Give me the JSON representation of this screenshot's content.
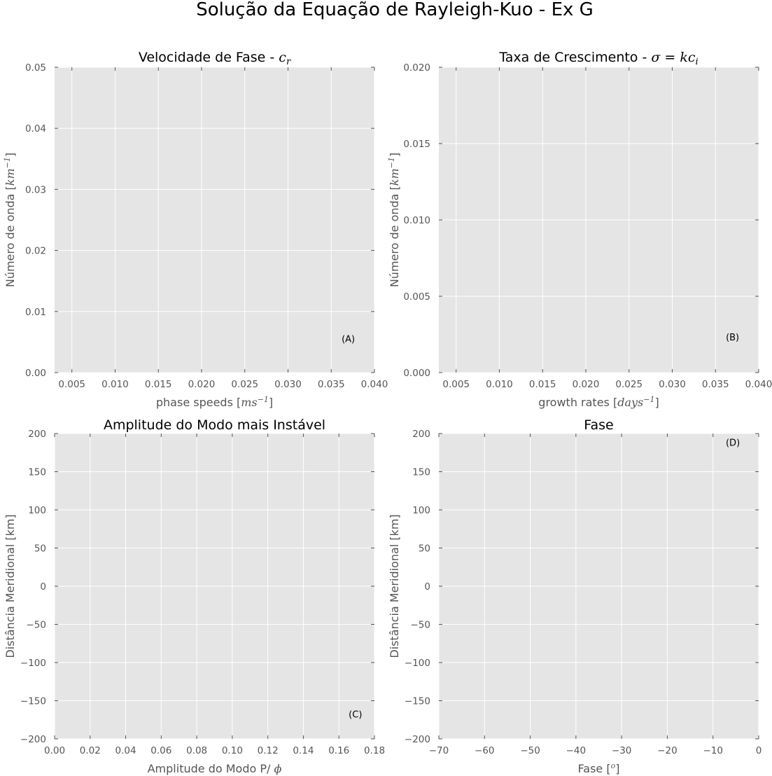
{
  "figure": {
    "suptitle": "Solução da Equação de Rayleigh-Kuo - Ex G",
    "background": "#ffffff",
    "axes_facecolor": "#e5e5e5",
    "grid_color": "#ffffff",
    "tick_color": "#555555"
  },
  "chart_data": [
    {
      "id": "A",
      "type": "line",
      "title": "Velocidade de Fase - ",
      "title_math": "c",
      "title_math_sub": "r",
      "xlabel": "phase speeds ",
      "xlabel_math": "ms",
      "xlabel_math_sup": "−1",
      "ylabel": "Número de onda ",
      "ylabel_math": "km",
      "ylabel_math_sup": "−1",
      "xlim": [
        0.003,
        0.04
      ],
      "ylim": [
        0.0,
        0.05
      ],
      "xticks": [
        0.005,
        0.01,
        0.015,
        0.02,
        0.025,
        0.03,
        0.035,
        0.04
      ],
      "xtick_labels": [
        "0.005",
        "0.010",
        "0.015",
        "0.020",
        "0.025",
        "0.030",
        "0.035",
        "0.040"
      ],
      "yticks": [
        0.0,
        0.01,
        0.02,
        0.03,
        0.04,
        0.05
      ],
      "ytick_labels": [
        "0.00",
        "0.01",
        "0.02",
        "0.03",
        "0.04",
        "0.05"
      ],
      "grid": true,
      "annotation": {
        "text": "(A)",
        "x": 0.0362,
        "y": 0.005
      },
      "series": []
    },
    {
      "id": "B",
      "type": "line",
      "title": "Taxa de Crescimento - ",
      "title_math": "σ = kc",
      "title_math_sub": "i",
      "xlabel": "growth rates ",
      "xlabel_math": "days",
      "xlabel_math_sup": "−1",
      "ylabel": "Número de onda ",
      "ylabel_math": "km",
      "ylabel_math_sup": "−1",
      "xlim": [
        0.003,
        0.04
      ],
      "ylim": [
        0.0,
        0.02
      ],
      "xticks": [
        0.005,
        0.01,
        0.015,
        0.02,
        0.025,
        0.03,
        0.035,
        0.04
      ],
      "xtick_labels": [
        "0.005",
        "0.010",
        "0.015",
        "0.020",
        "0.025",
        "0.030",
        "0.035",
        "0.040"
      ],
      "yticks": [
        0.0,
        0.005,
        0.01,
        0.015,
        0.02
      ],
      "ytick_labels": [
        "0.000",
        "0.005",
        "0.010",
        "0.015",
        "0.020"
      ],
      "grid": true,
      "annotation": {
        "text": "(B)",
        "x": 0.0362,
        "y": 0.0021
      },
      "series": []
    },
    {
      "id": "C",
      "type": "line",
      "title": "Amplitude do Modo mais Instável",
      "title_math": "",
      "title_math_sub": "",
      "xlabel": "Amplitude do Modo P/ ",
      "xlabel_math": "ϕ",
      "xlabel_math_sup": "",
      "ylabel": "Distância Meridional [km]",
      "ylabel_math": "",
      "ylabel_math_sup": "",
      "xlim": [
        0.0,
        0.18
      ],
      "ylim": [
        -200,
        200
      ],
      "xticks": [
        0.0,
        0.02,
        0.04,
        0.06,
        0.08,
        0.1,
        0.12,
        0.14,
        0.16,
        0.18
      ],
      "xtick_labels": [
        "0.00",
        "0.02",
        "0.04",
        "0.06",
        "0.08",
        "0.10",
        "0.12",
        "0.14",
        "0.16",
        "0.18"
      ],
      "yticks": [
        -200,
        -150,
        -100,
        -50,
        0,
        50,
        100,
        150,
        200
      ],
      "ytick_labels": [
        "−200",
        "−150",
        "−100",
        "−50",
        "0",
        "50",
        "100",
        "150",
        "200"
      ],
      "grid": true,
      "annotation": {
        "text": "(C)",
        "x": 0.1655,
        "y": -172
      },
      "series": []
    },
    {
      "id": "D",
      "type": "line",
      "title": "Fase",
      "title_math": "",
      "title_math_sub": "",
      "xlabel": "Fase ",
      "xlabel_math": "o",
      "xlabel_math_sup": "",
      "ylabel": "Distância Meridional [km]",
      "ylabel_math": "",
      "ylabel_math_sup": "",
      "xlim": [
        -70,
        0
      ],
      "ylim": [
        -200,
        200
      ],
      "xticks": [
        -70,
        -60,
        -50,
        -40,
        -30,
        -20,
        -10,
        0
      ],
      "xtick_labels": [
        "−70",
        "−60",
        "−50",
        "−40",
        "−30",
        "−20",
        "−10",
        "0"
      ],
      "yticks": [
        -200,
        -150,
        -100,
        -50,
        0,
        50,
        100,
        150,
        200
      ],
      "ytick_labels": [
        "−200",
        "−150",
        "−100",
        "−50",
        "0",
        "50",
        "100",
        "150",
        "200"
      ],
      "grid": true,
      "annotation": {
        "text": "(D)",
        "x": -7.2,
        "y": 184
      },
      "series": []
    }
  ]
}
